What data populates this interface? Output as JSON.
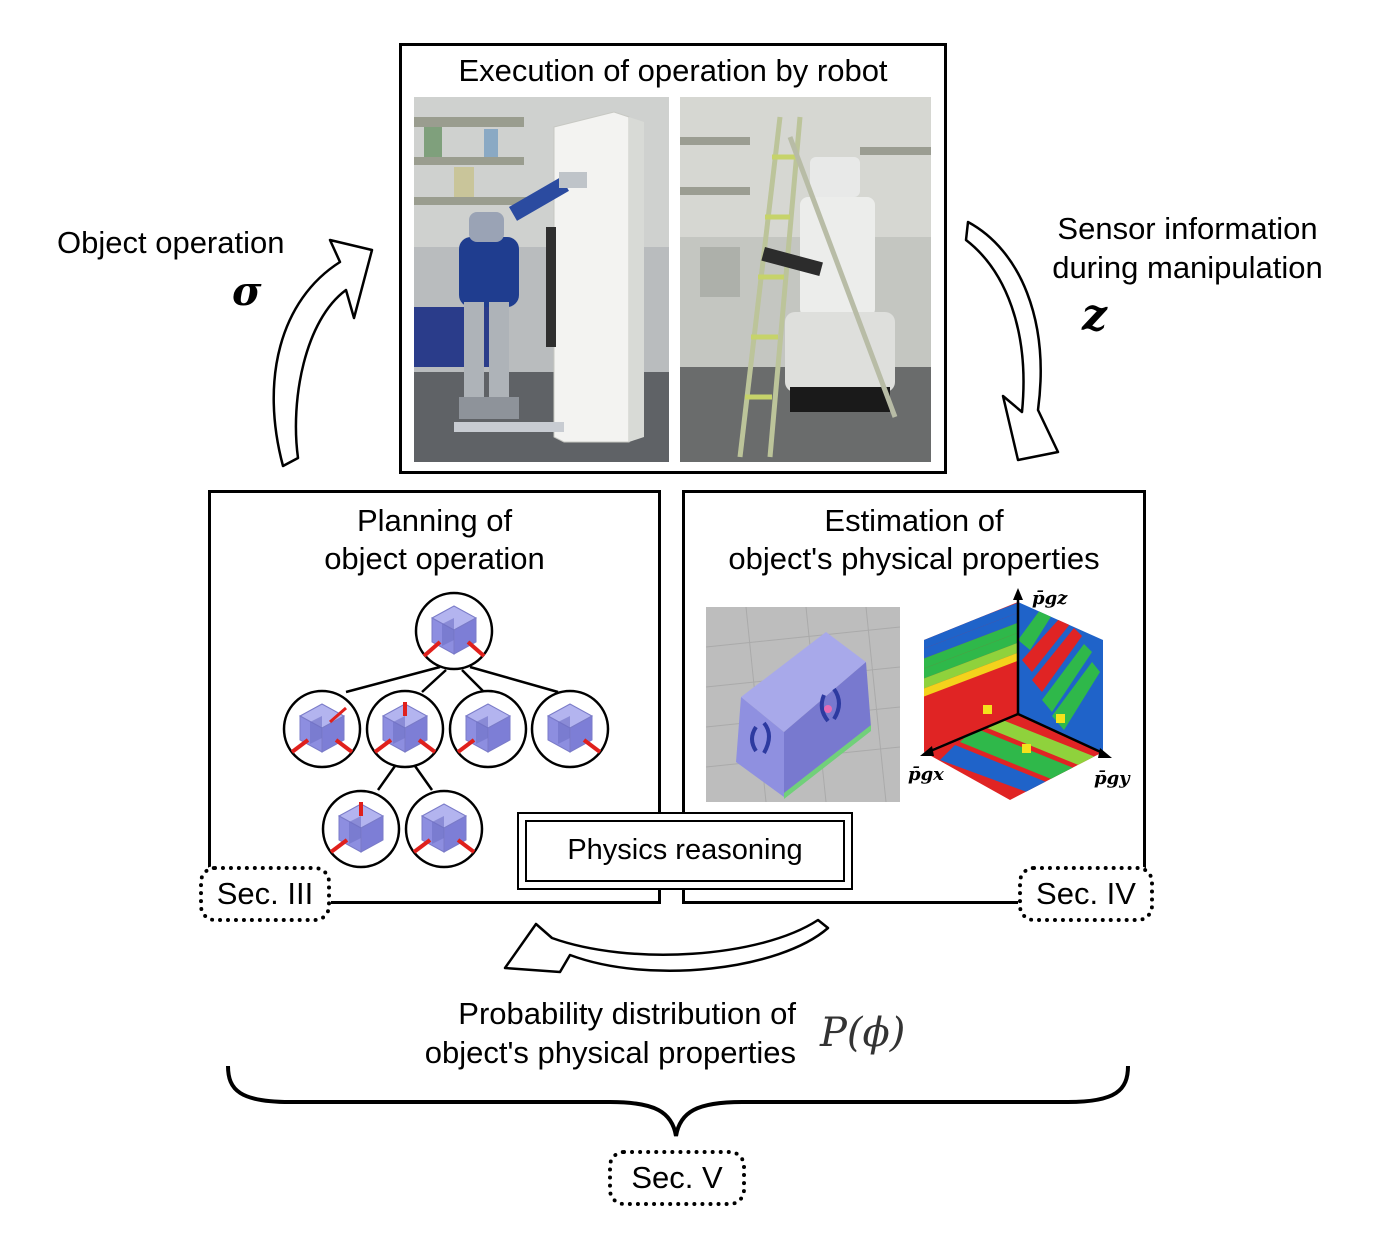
{
  "execution": {
    "title": "Execution of operation by robot"
  },
  "left_arrow": {
    "label": "Object operation",
    "symbol": "σ"
  },
  "right_arrow": {
    "label_line1": "Sensor information",
    "label_line2": "during manipulation",
    "symbol": "z"
  },
  "planning": {
    "title_line1": "Planning of",
    "title_line2": "object operation",
    "section": "Sec. III"
  },
  "estimation": {
    "title_line1": "Estimation of",
    "title_line2": "object's physical properties",
    "section": "Sec. IV",
    "axis_z": "p̄gz",
    "axis_x": "p̄gx",
    "axis_y": "p̄gy"
  },
  "physics": {
    "label": "Physics reasoning"
  },
  "probability": {
    "line1": "Probability distribution of",
    "line2": "object's physical properties",
    "symbol": "P(ϕ)",
    "section": "Sec. V"
  },
  "colors": {
    "cube": "#8d8ee0",
    "accent_red": "#e0201c",
    "border": "#000000"
  }
}
